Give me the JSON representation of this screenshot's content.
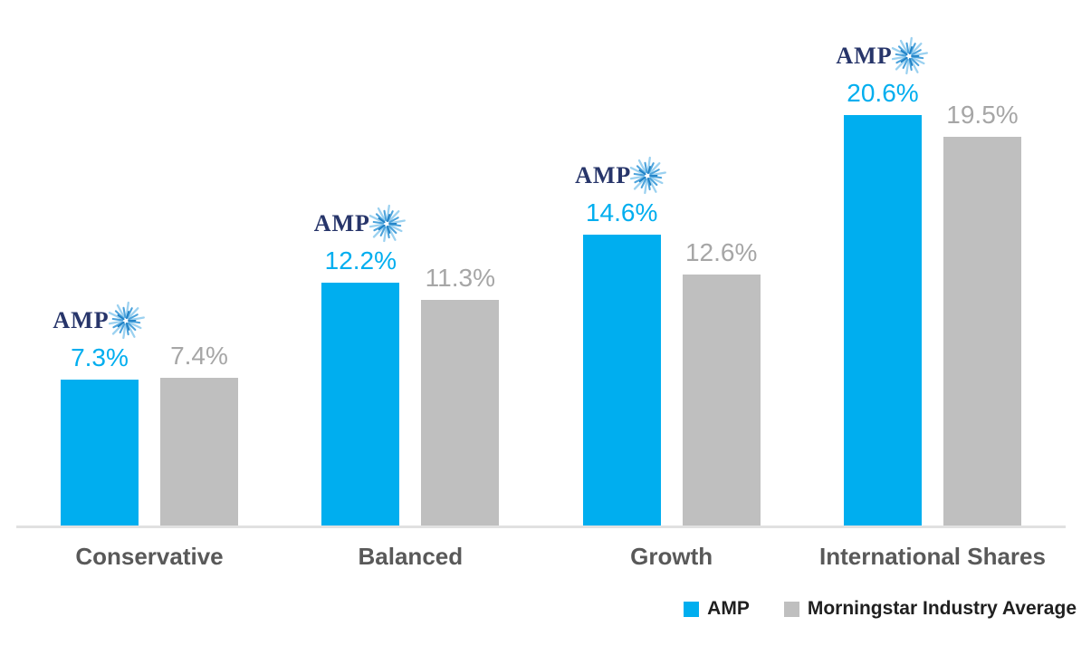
{
  "chart_data": {
    "type": "bar",
    "title": "",
    "categories": [
      "Conservative",
      "Balanced",
      "Growth",
      "International Shares"
    ],
    "series": [
      {
        "name": "AMP",
        "color": "#00AEEF",
        "values": [
          7.3,
          12.2,
          14.6,
          20.6
        ],
        "labels": [
          "7.3%",
          "12.2%",
          "14.6%",
          "20.6%"
        ],
        "label_color": "#00AEEF",
        "annotation_above": "amp-logo"
      },
      {
        "name": "Morningstar Industry Average",
        "color": "#BFBFBF",
        "values": [
          7.4,
          11.3,
          12.6,
          19.5
        ],
        "labels": [
          "7.4%",
          "11.3%",
          "12.6%",
          "19.5%"
        ],
        "label_color": "#A6A6A6"
      }
    ],
    "xlabel": "",
    "ylabel": "",
    "ylim": [
      0,
      22
    ],
    "grid": false,
    "value_labels_shown": true,
    "legend_position": "bottom-right"
  },
  "logo": {
    "text": "AMP",
    "wordmark_color": "#27356A",
    "starburst_colors": [
      "#9BD1F0",
      "#4CA3DC",
      "#1D7FC4"
    ]
  },
  "legend": {
    "items": [
      {
        "label": "AMP",
        "color": "#00AEEF"
      },
      {
        "label": "Morningstar Industry Average",
        "color": "#BFBFBF"
      }
    ]
  },
  "style_colors": {
    "axis_line": "#E1E1E1",
    "category_label": "#595959",
    "legend_text": "#1F1F1F",
    "background": "#FFFFFF"
  }
}
